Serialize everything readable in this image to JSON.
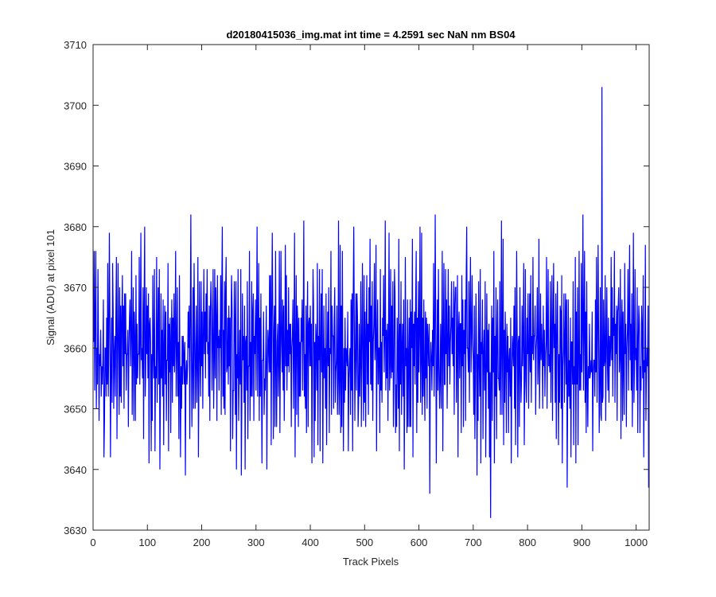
{
  "chart_data": {
    "type": "line",
    "title": "d20180415036_img.mat int time = 4.2591 sec  NaN nm BS04",
    "xlabel": "Track Pixels",
    "ylabel": "Signal (ADU) at pixel 101",
    "xlim": [
      0,
      1024
    ],
    "ylim": [
      3630,
      3710
    ],
    "xticks": [
      0,
      100,
      200,
      300,
      400,
      500,
      600,
      700,
      800,
      900,
      1000
    ],
    "yticks": [
      3630,
      3640,
      3650,
      3660,
      3670,
      3680,
      3690,
      3700,
      3710
    ],
    "grid": false,
    "legend": "none",
    "series_color": "#0000ff",
    "series": [
      {
        "x_start": 1,
        "x_step": 1,
        "values": [
          3659,
          3678,
          3652,
          3660,
          3674,
          3648,
          3663,
          3650,
          3671,
          3657,
          3646,
          3661,
          3654,
          3666,
          3651,
          3660,
          3657,
          3655,
          3664,
          3639,
          3652,
          3660,
          3658,
          3653,
          3667,
          3655,
          3670,
          3648,
          3663,
          3680,
          3662,
          3645,
          3659,
          3667,
          3652,
          3674,
          3661,
          3650,
          3656,
          3665,
          3653,
          3662,
          3672,
          3647,
          3659,
          3671,
          3658,
          3653,
          3669,
          3656,
          3665,
          3652,
          3663,
          3674,
          3658,
          3668,
          3651,
          3665,
          3660,
          3674,
          3655,
          3663,
          3657,
          3668,
          3649,
          3662,
          3666,
          3671,
          3654,
          3663,
          3676,
          3646,
          3660,
          3668,
          3653,
          3665,
          3662,
          3648,
          3670,
          3656,
          3664,
          3650,
          3662,
          3659,
          3671,
          3653,
          3666,
          3678,
          3657,
          3661,
          3652,
          3668,
          3647,
          3664,
          3675,
          3652,
          3660,
          3669,
          3657,
          3663,
          3654,
          3667,
          3645,
          3660,
          3669,
          3664,
          3643,
          3656,
          3650,
          3668,
          3662,
          3652,
          3674,
          3644,
          3662,
          3657,
          3673,
          3648,
          3659,
          3665,
          3653,
          3669,
          3642,
          3657,
          3671,
          3655,
          3662,
          3650,
          3666,
          3644,
          3658,
          3663,
          3652,
          3670,
          3647,
          3661,
          3656,
          3675,
          3645,
          3662,
          3657,
          3666,
          3649,
          3663,
          3672,
          3651,
          3660,
          3655,
          3669,
          3653
        ],
        "note_values_are_digitized_samples": true
      }
    ],
    "extremes": {
      "max_x": 937,
      "max_y": 3703,
      "min_x": 732,
      "min_y": 3632
    }
  }
}
